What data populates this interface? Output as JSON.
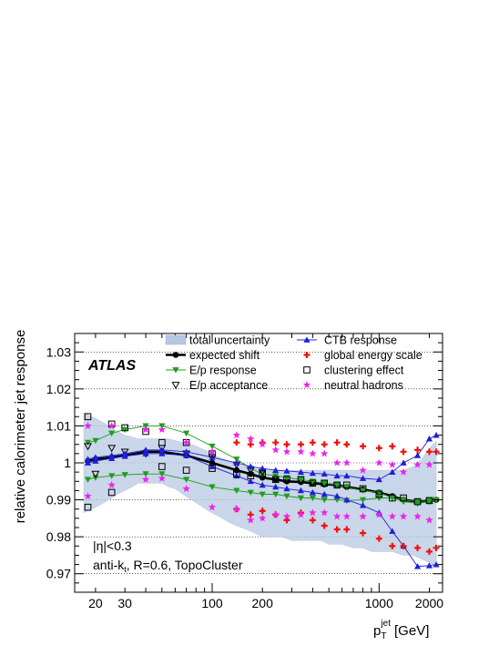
{
  "chart_data": {
    "type": "scatter",
    "experiment_label": "ATLAS",
    "ylabel": "relative calorimeter jet response",
    "xlabel_main": "p",
    "xlabel_sub": "T",
    "xlabel_sup": "jet",
    "xlabel_unit": "[GeV]",
    "x_scale": "log",
    "xlim": [
      15,
      2400
    ],
    "ylim": [
      0.965,
      1.035
    ],
    "x_ticks": [
      20,
      30,
      100,
      200,
      1000,
      2000
    ],
    "x_tick_labels": [
      "20",
      "30",
      "100",
      "200",
      "1000",
      "2000"
    ],
    "y_ticks": [
      0.97,
      0.98,
      0.99,
      1,
      1.01,
      1.02,
      1.03
    ],
    "y_tick_labels": [
      "0.97",
      "0.98",
      "0.99",
      "1",
      "1.01",
      "1.02",
      "1.03"
    ],
    "grid": "horizontal dotted",
    "annotations": [
      "|η|<0.3",
      "anti-k",
      "t",
      ", R=0.6, TopoCluster"
    ],
    "legend_position": "top",
    "band": {
      "name": "total uncertainty",
      "color": "#b8c8e2",
      "x": [
        17,
        19,
        21,
        23,
        25,
        27,
        30,
        33,
        36,
        40,
        45,
        50,
        55,
        60,
        67,
        75,
        85,
        95,
        110,
        125,
        140,
        160,
        180,
        200,
        230,
        260,
        300,
        340,
        400,
        450,
        500,
        600,
        700,
        800,
        900,
        1000,
        1200,
        1400,
        1600,
        1800,
        2000,
        2200
      ],
      "lower": [
        0.9865,
        0.9875,
        0.9885,
        0.9895,
        0.9905,
        0.9915,
        0.9925,
        0.9935,
        0.9945,
        0.9945,
        0.9945,
        0.9945,
        0.9935,
        0.993,
        0.9915,
        0.99,
        0.9885,
        0.987,
        0.9855,
        0.984,
        0.983,
        0.982,
        0.981,
        0.98,
        0.98,
        0.98,
        0.979,
        0.979,
        0.979,
        0.979,
        0.978,
        0.978,
        0.977,
        0.977,
        0.976,
        0.976,
        0.976,
        0.975,
        0.975,
        0.974,
        0.973,
        0.972
      ],
      "upper": [
        1.0135,
        1.0125,
        1.0115,
        1.0105,
        1.0095,
        1.0085,
        1.0075,
        1.007,
        1.0065,
        1.0065,
        1.0065,
        1.0065,
        1.0065,
        1.006,
        1.0055,
        1.005,
        1.004,
        1.003,
        1.0015,
        1.0005,
        0.9995,
        0.999,
        0.9985,
        0.998,
        0.998,
        0.998,
        0.998,
        0.998,
        0.998,
        0.998,
        0.998,
        0.998,
        0.998,
        0.998,
        0.998,
        0.998,
        0.998,
        0.998,
        0.999,
        1.001,
        1.004,
        1.006
      ]
    },
    "series": [
      {
        "name": "expected shift",
        "color": "#000000",
        "marker": "circle",
        "x": [
          18,
          20,
          25,
          30,
          40,
          50,
          70,
          100,
          140,
          170,
          200,
          240,
          280,
          340,
          400,
          470,
          560,
          640,
          800,
          1000,
          1200,
          1400,
          1700,
          2000,
          2200
        ],
        "values": [
          1.0005,
          1.001,
          1.0015,
          1.002,
          1.003,
          1.003,
          1.002,
          1.0,
          0.998,
          0.997,
          0.996,
          0.9955,
          0.995,
          0.9948,
          0.9945,
          0.9942,
          0.994,
          0.9935,
          0.9928,
          0.992,
          0.991,
          0.99,
          0.9895,
          0.9898,
          0.99
        ]
      },
      {
        "name": "E/p response",
        "color": "#1e9e1e",
        "marker": "triangle-down",
        "x": [
          18,
          20,
          25,
          30,
          40,
          50,
          70,
          100,
          140,
          170,
          200,
          240,
          280,
          340,
          400,
          470,
          560,
          640,
          800,
          1000,
          1200,
          1400,
          1700,
          2000,
          2200
        ],
        "values": [
          1.0055,
          1.006,
          1.008,
          1.009,
          1.01,
          1.01,
          1.008,
          1.0045,
          1.001,
          0.9985,
          0.997,
          0.9965,
          0.996,
          0.9955,
          0.995,
          0.9945,
          0.994,
          0.9935,
          0.9925,
          0.992,
          0.9905,
          0.9895,
          0.989,
          0.9895,
          0.99
        ]
      },
      {
        "name": "E/p response",
        "color": "#1e9e1e",
        "marker": "triangle-down",
        "x": [
          18,
          20,
          25,
          30,
          40,
          50,
          70,
          100,
          140,
          170,
          200,
          240,
          280,
          340,
          400,
          470,
          560,
          640,
          800,
          1000,
          1200,
          1400,
          1700,
          2000,
          2200
        ],
        "values": [
          0.9955,
          0.996,
          0.9965,
          0.9968,
          0.997,
          0.997,
          0.9955,
          0.9935,
          0.9925,
          0.992,
          0.9915,
          0.9915,
          0.991,
          0.9905,
          0.9905,
          0.99,
          0.99,
          0.9898,
          0.99,
          0.9905,
          0.9905,
          0.99,
          0.9895,
          0.9898,
          0.99
        ]
      },
      {
        "name": "E/p acceptance",
        "color": "#000000",
        "marker": "triangle-down-open",
        "x": [
          18,
          20,
          25,
          30,
          40,
          50,
          70,
          100,
          140,
          170,
          200
        ],
        "values": [
          1.0045,
          0.997,
          1.004,
          1.003,
          1.0025,
          1.004,
          1.0025,
          1.0015,
          0.9995,
          0.998,
          0.9975
        ]
      },
      {
        "name": "CTB response",
        "color": "#1f1fd8",
        "marker": "triangle-up",
        "x": [
          18,
          20,
          25,
          30,
          40,
          50,
          70,
          100,
          140,
          170,
          200,
          240,
          280,
          340,
          400,
          470,
          560,
          640,
          800,
          1000,
          1200,
          1400,
          1700,
          2000,
          2200
        ],
        "values": [
          1.001,
          1.0015,
          1.002,
          1.0025,
          1.0035,
          1.0035,
          1.003,
          1.0015,
          1.0,
          0.999,
          0.9985,
          0.998,
          0.9978,
          0.9975,
          0.9972,
          0.997,
          0.9965,
          0.9965,
          0.9958,
          0.9955,
          0.9975,
          1.0,
          1.002,
          1.0065,
          1.0075
        ]
      },
      {
        "name": "CTB response",
        "color": "#1f1fd8",
        "marker": "triangle-up",
        "x": [
          18,
          20,
          25,
          30,
          40,
          50,
          70,
          100,
          140,
          170,
          200,
          240,
          280,
          340,
          400,
          470,
          560,
          640,
          800,
          1000,
          1200,
          1400,
          1700,
          2000,
          2200
        ],
        "values": [
          1.0,
          1.0005,
          1.0012,
          1.0018,
          1.0025,
          1.0025,
          1.002,
          0.999,
          0.9965,
          0.995,
          0.994,
          0.9935,
          0.993,
          0.9925,
          0.992,
          0.9915,
          0.991,
          0.99,
          0.9885,
          0.9865,
          0.9815,
          0.9775,
          0.972,
          0.9722,
          0.9725
        ]
      },
      {
        "name": "global energy scale",
        "color": "#ee1111",
        "marker": "cross",
        "x": [
          140,
          170,
          200,
          240,
          280,
          340,
          400,
          470,
          560,
          640,
          800,
          1000,
          1200,
          1400,
          1700,
          2000,
          2200
        ],
        "values": [
          1.0055,
          1.005,
          1.0055,
          1.0055,
          1.005,
          1.005,
          1.0055,
          1.005,
          1.0055,
          1.005,
          1.0045,
          1.004,
          1.0045,
          1.003,
          1.0035,
          1.003,
          1.003
        ]
      },
      {
        "name": "global energy scale",
        "color": "#ee1111",
        "marker": "cross",
        "x": [
          140,
          170,
          200,
          240,
          280,
          340,
          400,
          470,
          560,
          640,
          800,
          1000,
          1200,
          1400,
          1700,
          2000,
          2200
        ],
        "values": [
          0.9875,
          0.986,
          0.987,
          0.986,
          0.9845,
          0.9865,
          0.9845,
          0.983,
          0.982,
          0.982,
          0.981,
          0.9795,
          0.9775,
          0.9775,
          0.977,
          0.976,
          0.977
        ]
      },
      {
        "name": "clustering effect",
        "color": "#000000",
        "marker": "square-open",
        "x": [
          18,
          18,
          25,
          25,
          30,
          40,
          50,
          50,
          70,
          70,
          100,
          100,
          140,
          170,
          200,
          240,
          280,
          340,
          400,
          470,
          560,
          640,
          800,
          1000,
          1200,
          1400,
          1700,
          2000
        ],
        "values": [
          1.0125,
          0.988,
          1.0105,
          0.992,
          1.0095,
          1.0085,
          1.0055,
          0.999,
          1.0055,
          0.998,
          1.0025,
          0.9985,
          0.997,
          0.9965,
          0.997,
          0.9955,
          0.9955,
          0.9955,
          0.9945,
          0.9945,
          0.994,
          0.994,
          0.993,
          0.9915,
          0.9905,
          0.9905,
          0.9895,
          0.9898
        ]
      },
      {
        "name": "neutral hadrons",
        "color": "#ee22ee",
        "marker": "star",
        "x": [
          18,
          18,
          25,
          25,
          40,
          40,
          50,
          50,
          70,
          70,
          100,
          100,
          140,
          140,
          170,
          170,
          200,
          200,
          240,
          240,
          280,
          280,
          340,
          340,
          400,
          400,
          470,
          470,
          560,
          560,
          640,
          640,
          800,
          800,
          1000,
          1000,
          1200,
          1200,
          1400,
          1400,
          1700,
          1700,
          2000,
          2000
        ],
        "values": [
          1.01,
          0.991,
          1.01,
          0.994,
          1.009,
          0.9955,
          1.009,
          0.9958,
          1.0055,
          0.993,
          1.003,
          0.988,
          1.0075,
          0.9875,
          1.0065,
          0.9845,
          1.005,
          0.985,
          1.0035,
          0.986,
          1.003,
          0.9855,
          1.003,
          0.986,
          1.0025,
          0.9865,
          1.0025,
          0.9865,
          1.0,
          0.9855,
          1.0,
          0.9855,
          0.998,
          0.9855,
          1.0,
          0.986,
          0.9995,
          0.9855,
          0.9975,
          0.9855,
          0.9995,
          0.9855,
          0.9995,
          0.9845
        ]
      }
    ],
    "legend": [
      {
        "label": "total uncertainty",
        "marker": "band",
        "color": "#b8c8e2"
      },
      {
        "label": "expected shift",
        "marker": "circle",
        "color": "#000000"
      },
      {
        "label": "E/p response",
        "marker": "triangle-down",
        "color": "#1e9e1e"
      },
      {
        "label": "E/p acceptance",
        "marker": "triangle-down-open",
        "color": "#000000"
      },
      {
        "label": "CTB response",
        "marker": "triangle-up",
        "color": "#1f1fd8"
      },
      {
        "label": "global energy scale",
        "marker": "cross",
        "color": "#ee1111"
      },
      {
        "label": "clustering effect",
        "marker": "square-open",
        "color": "#000000"
      },
      {
        "label": "neutral hadrons",
        "marker": "star",
        "color": "#ee22ee"
      }
    ]
  }
}
